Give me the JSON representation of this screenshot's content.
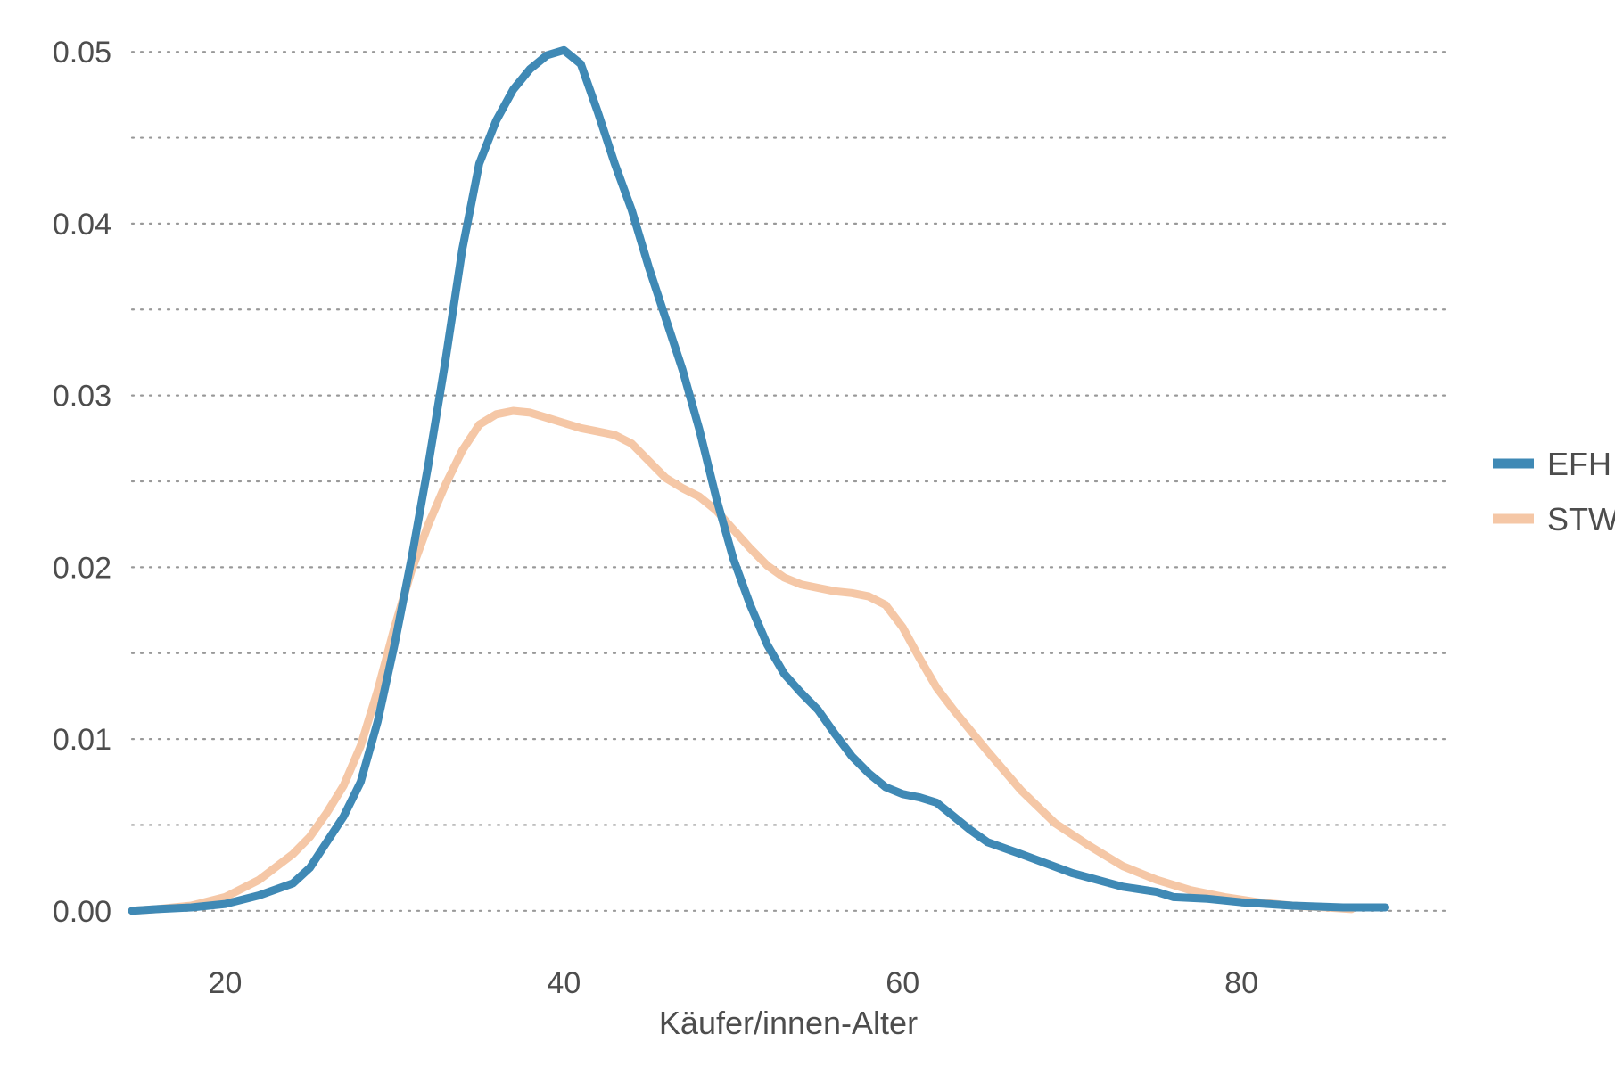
{
  "chart_data": {
    "type": "line",
    "xlabel": "Käufer/innen-Alter",
    "ylabel": "",
    "xlim": [
      14.5,
      92
    ],
    "ylim": [
      -0.0025,
      0.0525
    ],
    "x_ticks": [
      20,
      40,
      60,
      80
    ],
    "x_tick_labels": [
      "20",
      "40",
      "60",
      "80"
    ],
    "y_ticks": [
      0.0,
      0.01,
      0.02,
      0.03,
      0.04,
      0.05
    ],
    "y_tick_labels": [
      "0.00",
      "0.01",
      "0.02",
      "0.03",
      "0.04",
      "0.05"
    ],
    "grid": "horizontal dotted",
    "legend_position": "right",
    "series": [
      {
        "name": "EFH",
        "color": "#3f89b5",
        "points": [
          [
            14.5,
            0.0
          ],
          [
            16,
            0.0001
          ],
          [
            18,
            0.0002
          ],
          [
            20,
            0.0004
          ],
          [
            22,
            0.0009
          ],
          [
            24,
            0.0016
          ],
          [
            25,
            0.0025
          ],
          [
            26,
            0.004
          ],
          [
            27,
            0.0055
          ],
          [
            28,
            0.0075
          ],
          [
            29,
            0.011
          ],
          [
            30,
            0.0155
          ],
          [
            31,
            0.0205
          ],
          [
            32,
            0.026
          ],
          [
            33,
            0.032
          ],
          [
            34,
            0.0385
          ],
          [
            35,
            0.0435
          ],
          [
            36,
            0.046
          ],
          [
            37,
            0.0478
          ],
          [
            38,
            0.049
          ],
          [
            39,
            0.0498
          ],
          [
            40,
            0.0501
          ],
          [
            41,
            0.0493
          ],
          [
            42,
            0.0465
          ],
          [
            43,
            0.0435
          ],
          [
            44,
            0.0408
          ],
          [
            45,
            0.0375
          ],
          [
            46,
            0.0345
          ],
          [
            47,
            0.0315
          ],
          [
            48,
            0.028
          ],
          [
            49,
            0.024
          ],
          [
            50,
            0.0205
          ],
          [
            51,
            0.0178
          ],
          [
            52,
            0.0155
          ],
          [
            53,
            0.0138
          ],
          [
            54,
            0.0127
          ],
          [
            55,
            0.0117
          ],
          [
            56,
            0.0103
          ],
          [
            57,
            0.009
          ],
          [
            58,
            0.008
          ],
          [
            59,
            0.0072
          ],
          [
            60,
            0.0068
          ],
          [
            61,
            0.0066
          ],
          [
            62,
            0.0063
          ],
          [
            63,
            0.0055
          ],
          [
            64,
            0.0047
          ],
          [
            65,
            0.004
          ],
          [
            67,
            0.0033
          ],
          [
            70,
            0.0022
          ],
          [
            73,
            0.0014
          ],
          [
            75,
            0.0011
          ],
          [
            76,
            0.0008
          ],
          [
            78,
            0.0007
          ],
          [
            80,
            0.0005
          ],
          [
            83,
            0.0003
          ],
          [
            86,
            0.0002
          ],
          [
            88.5,
            0.0002
          ]
        ]
      },
      {
        "name": "STW",
        "color": "#f5c7a6",
        "points": [
          [
            14.5,
            0.0
          ],
          [
            16,
            0.0001
          ],
          [
            18,
            0.0003
          ],
          [
            20,
            0.0008
          ],
          [
            22,
            0.0018
          ],
          [
            24,
            0.0033
          ],
          [
            25,
            0.0043
          ],
          [
            26,
            0.0057
          ],
          [
            27,
            0.0073
          ],
          [
            28,
            0.0096
          ],
          [
            29,
            0.0128
          ],
          [
            30,
            0.0165
          ],
          [
            31,
            0.0198
          ],
          [
            32,
            0.0225
          ],
          [
            33,
            0.0248
          ],
          [
            34,
            0.0268
          ],
          [
            35,
            0.0283
          ],
          [
            36,
            0.0289
          ],
          [
            37,
            0.0291
          ],
          [
            38,
            0.029
          ],
          [
            39,
            0.0287
          ],
          [
            40,
            0.0284
          ],
          [
            41,
            0.0281
          ],
          [
            42,
            0.0279
          ],
          [
            43,
            0.0277
          ],
          [
            44,
            0.0272
          ],
          [
            45,
            0.0262
          ],
          [
            46,
            0.0252
          ],
          [
            47,
            0.0246
          ],
          [
            48,
            0.0241
          ],
          [
            49,
            0.0233
          ],
          [
            50,
            0.0222
          ],
          [
            51,
            0.0211
          ],
          [
            52,
            0.0201
          ],
          [
            53,
            0.0194
          ],
          [
            54,
            0.019
          ],
          [
            55,
            0.0188
          ],
          [
            56,
            0.0186
          ],
          [
            57,
            0.0185
          ],
          [
            58,
            0.0183
          ],
          [
            59,
            0.0178
          ],
          [
            60,
            0.0165
          ],
          [
            61,
            0.0147
          ],
          [
            62,
            0.013
          ],
          [
            63,
            0.0117
          ],
          [
            64,
            0.0105
          ],
          [
            65,
            0.0093
          ],
          [
            67,
            0.007
          ],
          [
            69,
            0.0051
          ],
          [
            71,
            0.0038
          ],
          [
            73,
            0.0026
          ],
          [
            75,
            0.0018
          ],
          [
            77,
            0.0012
          ],
          [
            79,
            0.0008
          ],
          [
            81,
            0.0005
          ],
          [
            83,
            0.0003
          ],
          [
            85,
            0.0002
          ],
          [
            86.5,
            0.0001
          ]
        ]
      }
    ]
  }
}
